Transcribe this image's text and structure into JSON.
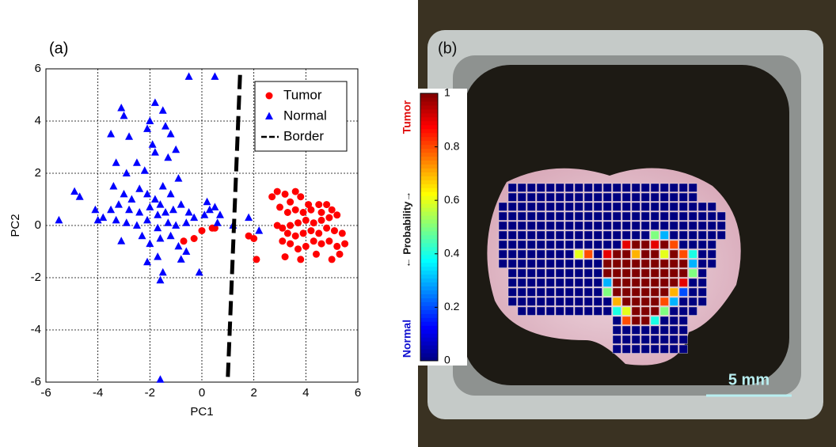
{
  "chart_data": [
    {
      "type": "scatter",
      "label": "(a)",
      "xlabel": "PC1",
      "ylabel": "PC2",
      "xlim": [
        -6,
        6
      ],
      "ylim": [
        -6,
        6
      ],
      "xticks": [
        -6,
        -4,
        -2,
        0,
        2,
        4,
        6
      ],
      "yticks": [
        -6,
        -4,
        -2,
        0,
        2,
        4,
        6
      ],
      "grid": true,
      "legend": "upper right",
      "series": [
        {
          "name": "Tumor",
          "color": "#ff0000",
          "marker": "circle",
          "x": [
            2.7,
            2.9,
            3.2,
            3.6,
            3.8,
            3.4,
            3.0,
            3.3,
            3.6,
            3.9,
            4.2,
            4.5,
            4.8,
            5.0,
            5.2,
            4.9,
            4.6,
            4.3,
            4.0,
            3.7,
            3.4,
            3.1,
            2.9,
            3.3,
            3.6,
            3.9,
            4.2,
            4.5,
            4.8,
            5.1,
            5.4,
            5.5,
            5.2,
            4.9,
            4.6,
            4.3,
            4.0,
            3.7,
            3.4,
            3.1,
            3.2,
            3.8,
            4.4,
            5.0,
            5.3,
            4.1,
            4.6,
            -0.7,
            -0.3,
            0.0,
            0.4,
            0.5,
            2.1,
            1.8,
            2.0
          ],
          "values": [
            1.1,
            1.3,
            1.2,
            1.3,
            1.1,
            0.9,
            0.7,
            0.5,
            0.6,
            0.5,
            0.6,
            0.8,
            0.8,
            0.6,
            0.4,
            0.3,
            0.2,
            0.1,
            0.2,
            0.1,
            0.0,
            -0.1,
            0.0,
            -0.3,
            -0.4,
            -0.3,
            -0.2,
            -0.3,
            -0.1,
            -0.2,
            -0.3,
            -0.7,
            -0.8,
            -0.6,
            -0.7,
            -0.6,
            -0.8,
            -0.9,
            -0.7,
            -0.6,
            -1.2,
            -1.3,
            -1.1,
            -1.3,
            -1.1,
            0.8,
            0.5,
            -0.6,
            -0.5,
            -0.2,
            -0.1,
            -0.1,
            -1.3,
            -0.4,
            -0.5
          ]
        },
        {
          "name": "Normal",
          "color": "#0000ff",
          "marker": "triangle",
          "x": [
            -5.5,
            -4.9,
            -4.7,
            -4.1,
            -4.0,
            -3.8,
            -3.5,
            -3.1,
            -3.0,
            -3.5,
            -2.8,
            -3.3,
            -2.9,
            -2.5,
            -2.2,
            -2.0,
            -2.1,
            -1.9,
            -1.8,
            -1.8,
            -1.5,
            -1.4,
            -1.2,
            -1.3,
            -1.0,
            -0.9,
            -1.5,
            -1.2,
            -3.4,
            -3.0,
            -2.7,
            -2.4,
            -2.1,
            -1.8,
            -1.6,
            -3.2,
            -2.8,
            -2.4,
            -2.0,
            -1.7,
            -1.4,
            -1.1,
            -0.8,
            -0.5,
            -3.3,
            -2.9,
            -2.5,
            -2.1,
            -1.7,
            -1.3,
            -1.0,
            -0.6,
            -0.3,
            0.1,
            0.3,
            0.2,
            0.5,
            0.7,
            0.6,
            -3.1,
            -2.3,
            -2.0,
            -1.6,
            -1.2,
            -0.9,
            -0.6,
            -0.8,
            -1.7,
            -2.1,
            -1.5,
            -1.6,
            -0.1,
            -0.5,
            0.5,
            -1.6,
            1.8,
            2.2,
            1.2
          ],
          "values": [
            0.2,
            1.3,
            1.1,
            0.6,
            0.2,
            0.3,
            0.6,
            4.5,
            4.2,
            3.5,
            3.4,
            2.4,
            2.0,
            2.4,
            2.1,
            4.0,
            3.7,
            3.1,
            2.8,
            4.7,
            4.4,
            3.8,
            3.5,
            2.6,
            2.9,
            1.8,
            1.5,
            1.2,
            1.5,
            1.2,
            1.0,
            1.4,
            1.2,
            1.0,
            0.8,
            0.8,
            0.6,
            0.5,
            0.7,
            0.4,
            0.5,
            0.6,
            0.8,
            0.5,
            0.2,
            0.1,
            0.0,
            0.2,
            -0.1,
            0.1,
            0.0,
            0.1,
            0.3,
            0.4,
            0.6,
            0.9,
            0.7,
            0.4,
            0.1,
            -0.6,
            -0.4,
            -0.7,
            -0.5,
            -0.4,
            -0.8,
            -1.0,
            -1.3,
            -1.2,
            -1.4,
            -1.8,
            -2.1,
            -1.8,
            5.7,
            5.7,
            -5.9,
            0.3,
            -0.2,
            0.0
          ]
        },
        {
          "name": "Border",
          "color": "#000000",
          "marker": "dashed-line",
          "x": [
            1.0,
            1.47
          ],
          "values": [
            -5.8,
            5.8
          ]
        }
      ]
    },
    {
      "type": "heatmap",
      "label": "(b)",
      "colormap": "jet",
      "clim": [
        0,
        1
      ],
      "cticks": [
        0,
        0.2,
        0.4,
        0.6,
        0.8,
        1
      ],
      "colorbar_top": "Tumor",
      "colorbar_middle": "← Probability→",
      "colorbar_bottom": "Normal",
      "scale_bar": "5 mm",
      "values": [
        [
          null,
          0,
          0,
          0,
          0,
          0,
          0,
          0,
          0,
          0,
          0,
          0,
          0,
          0,
          0,
          0,
          0,
          0,
          0,
          0,
          0,
          null,
          null,
          null
        ],
        [
          null,
          0,
          0,
          0,
          0,
          0,
          0,
          0,
          0,
          0,
          0,
          0,
          0,
          0,
          0,
          0,
          0,
          0,
          0,
          0,
          0,
          null,
          null,
          null
        ],
        [
          0,
          0,
          0,
          0,
          0,
          0,
          0,
          0,
          0,
          0,
          0,
          0,
          0,
          0,
          0,
          0,
          0,
          0,
          0,
          0,
          0,
          0,
          0,
          null
        ],
        [
          0,
          0,
          0,
          0,
          0,
          0,
          0,
          0,
          0,
          0,
          0,
          0,
          0,
          0,
          0,
          0,
          0,
          0,
          0,
          0,
          0,
          0,
          0,
          0
        ],
        [
          0,
          0,
          0,
          0,
          0,
          0,
          0,
          0,
          0,
          0,
          0,
          0,
          0,
          0,
          0,
          0,
          0,
          0,
          0,
          0,
          0,
          0,
          0,
          0
        ],
        [
          0,
          0,
          0,
          0,
          0,
          0,
          0,
          0,
          0,
          0,
          0,
          0,
          0,
          0,
          0,
          0,
          0.5,
          0.3,
          0,
          0,
          0,
          0,
          0,
          0
        ],
        [
          0,
          0,
          0,
          0,
          0,
          0,
          0,
          0,
          0,
          0,
          0,
          0,
          0,
          0.9,
          1,
          1,
          0.9,
          1,
          0.8,
          0,
          0,
          0,
          0,
          null
        ],
        [
          0,
          0,
          0,
          0,
          0,
          0,
          0,
          0,
          0.6,
          0.8,
          0,
          0.9,
          1,
          1,
          0.7,
          1,
          1,
          0.6,
          1,
          0.8,
          0.4,
          0,
          0,
          null
        ],
        [
          0,
          0,
          0,
          0,
          0,
          0,
          0,
          0,
          0,
          0,
          0,
          1,
          1,
          1,
          1,
          1,
          1,
          1,
          1,
          1,
          0.3,
          0,
          0,
          null
        ],
        [
          null,
          0,
          0,
          0,
          0,
          0,
          0,
          0,
          0,
          0,
          0,
          1,
          1,
          1,
          1,
          1,
          1,
          1,
          1,
          1,
          0.5,
          0,
          null,
          null
        ],
        [
          null,
          0,
          0,
          0,
          0,
          0,
          0,
          0,
          0,
          0,
          0,
          0.3,
          1,
          1,
          1,
          1,
          1,
          1,
          1,
          0.9,
          0,
          0,
          null,
          null
        ],
        [
          null,
          0,
          0,
          0,
          0,
          0,
          0,
          0,
          0,
          0,
          0,
          0.5,
          1,
          1,
          1,
          1,
          1,
          1,
          0.7,
          0.2,
          0,
          0,
          null,
          null
        ],
        [
          null,
          0,
          0,
          0,
          0,
          0,
          0,
          0,
          0,
          0,
          0,
          0,
          0.7,
          1,
          1,
          1,
          1,
          0.8,
          0.3,
          0,
          0,
          0,
          null,
          null
        ],
        [
          null,
          null,
          0,
          0,
          0,
          0,
          0,
          0,
          0,
          0,
          0,
          0,
          0.4,
          0.6,
          1,
          1,
          1,
          0.5,
          0,
          0,
          0,
          null,
          null,
          null
        ],
        [
          null,
          null,
          null,
          null,
          null,
          null,
          null,
          null,
          null,
          null,
          null,
          null,
          0,
          0.8,
          1,
          1,
          0.4,
          0,
          0,
          0,
          null,
          null,
          null,
          null
        ],
        [
          null,
          null,
          null,
          null,
          null,
          null,
          null,
          null,
          null,
          null,
          null,
          null,
          0,
          0,
          0,
          0,
          0,
          0,
          0,
          0,
          null,
          null,
          null,
          null
        ],
        [
          null,
          null,
          null,
          null,
          null,
          null,
          null,
          null,
          null,
          null,
          null,
          null,
          0,
          0,
          0,
          0,
          0,
          0,
          0,
          0,
          null,
          null,
          null,
          null
        ],
        [
          null,
          null,
          null,
          null,
          null,
          null,
          null,
          null,
          null,
          null,
          null,
          null,
          0,
          0,
          0,
          0,
          0,
          0,
          0,
          0,
          null,
          null,
          null,
          null
        ]
      ]
    }
  ]
}
